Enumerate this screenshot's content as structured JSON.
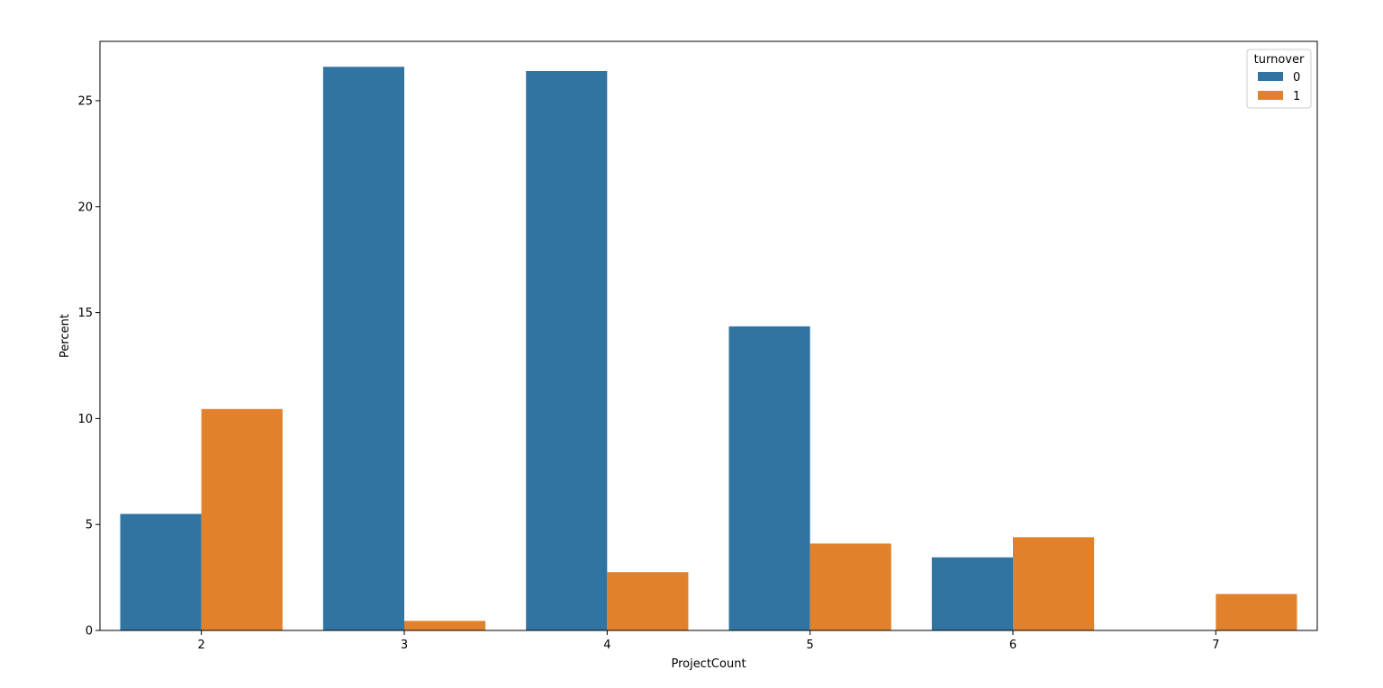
{
  "chart_data": {
    "type": "bar",
    "title": "",
    "xlabel": "ProjectCount",
    "ylabel": "Percent",
    "categories": [
      "2",
      "3",
      "4",
      "5",
      "6",
      "7"
    ],
    "ylim": [
      0,
      27.8
    ],
    "yticks": [
      0,
      5,
      10,
      15,
      20,
      25
    ],
    "grid": false,
    "legend": {
      "title": "turnover",
      "position": "top-right"
    },
    "series": [
      {
        "name": "0",
        "color": "#3274a1",
        "values": [
          5.5,
          26.6,
          26.4,
          14.35,
          3.45,
          0
        ]
      },
      {
        "name": "1",
        "color": "#e1812c",
        "values": [
          10.45,
          0.45,
          2.75,
          4.1,
          4.4,
          1.72
        ]
      }
    ]
  }
}
